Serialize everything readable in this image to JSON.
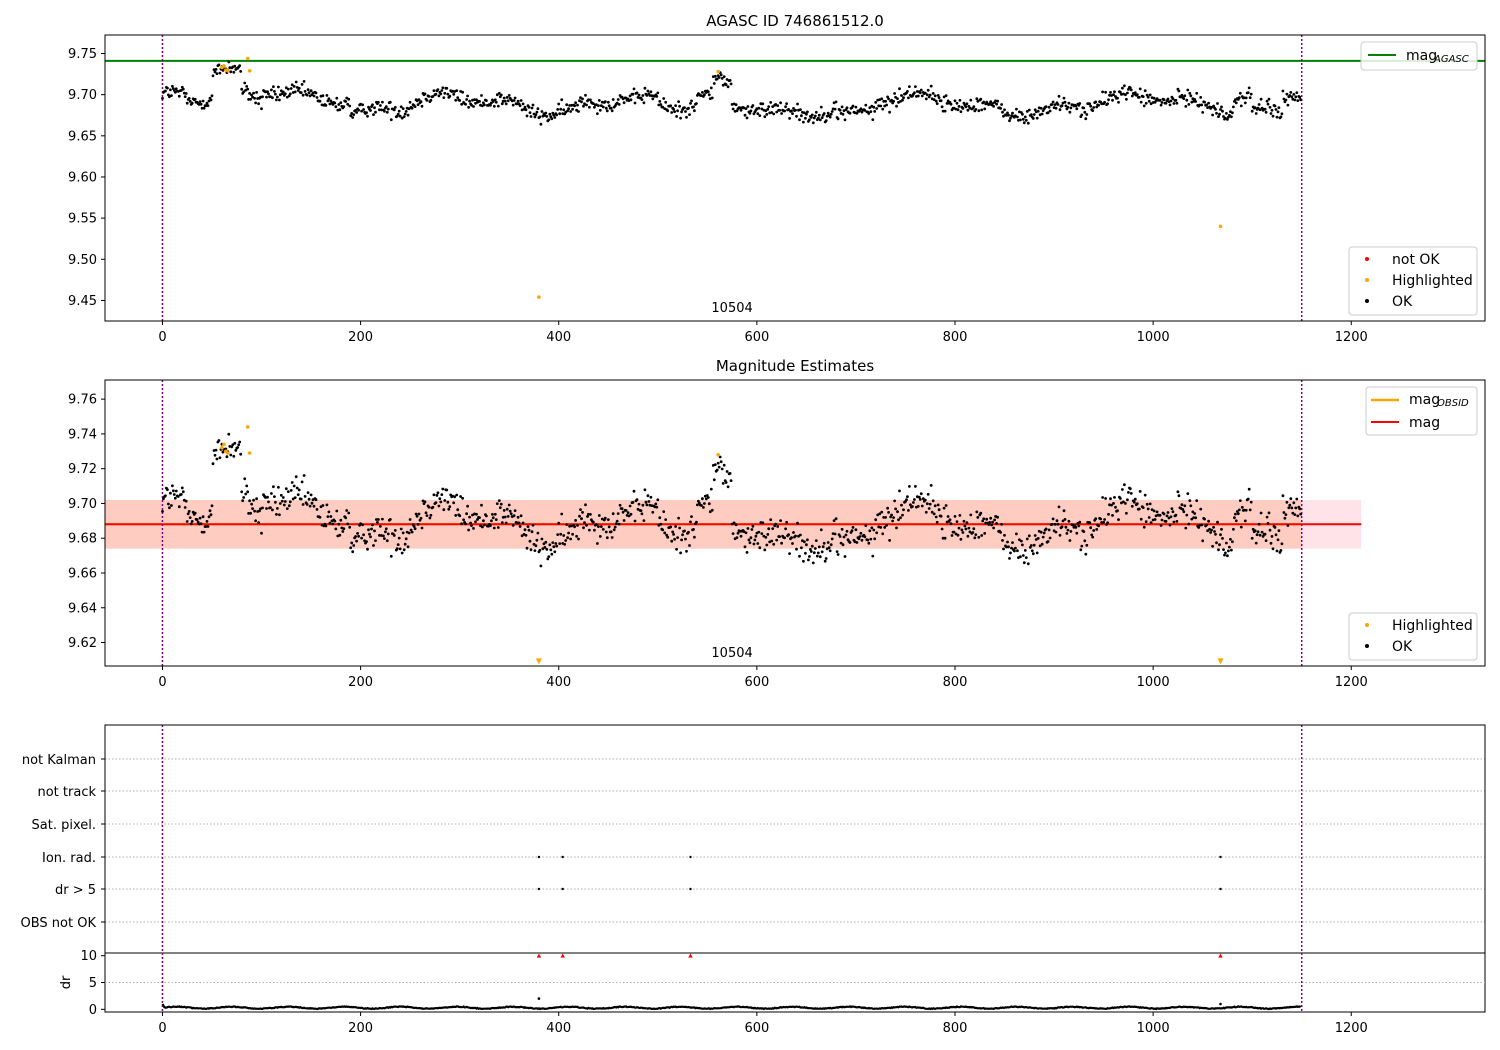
{
  "chart_data": [
    {
      "id": "panel1",
      "type": "scatter",
      "title": "AGASC ID 746861512.0",
      "xlim": [
        -58,
        1335
      ],
      "ylim": [
        9.425,
        9.7725
      ],
      "xticks": [
        0,
        200,
        400,
        600,
        800,
        1000,
        1200
      ],
      "yticks": [
        9.45,
        9.5,
        9.55,
        9.6,
        9.65,
        9.7,
        9.75
      ],
      "ytick_format": 2,
      "grid": false,
      "obsid_lines": [
        0,
        1150
      ],
      "obsid_label": {
        "text": "10504",
        "x": 575
      },
      "mag_agasc": 9.741,
      "legend_top": {
        "position": "top-right",
        "entries": [
          {
            "label": "mag",
            "sub": "AGASC",
            "color": "#008000"
          }
        ]
      },
      "legend_bottom": {
        "position": "lower-right",
        "entries": [
          {
            "label": "not OK",
            "color": "#ff0000"
          },
          {
            "label": "Highlighted",
            "color": "#ffa500"
          },
          {
            "label": "OK",
            "color": "#000000"
          }
        ]
      },
      "series": [
        {
          "name": "OK",
          "color": "#000000",
          "generated": {
            "n": 1150,
            "mean": 9.688,
            "noise": 0.012
          }
        },
        {
          "name": "Highlighted",
          "color": "#ffa500",
          "points": [
            [
              60,
              9.733
            ],
            [
              62,
              9.735
            ],
            [
              64,
              9.73
            ],
            [
              66,
              9.729
            ],
            [
              86,
              9.744
            ],
            [
              88,
              9.729
            ],
            [
              561,
              9.728
            ],
            [
              380,
              9.454
            ],
            [
              1068,
              9.54
            ]
          ]
        }
      ]
    },
    {
      "id": "panel2",
      "type": "scatter",
      "title": "Magnitude Estimates",
      "xlim": [
        -58,
        1335
      ],
      "ylim": [
        9.6065,
        9.771
      ],
      "xticks": [
        0,
        200,
        400,
        600,
        800,
        1000,
        1200
      ],
      "yticks": [
        9.62,
        9.64,
        9.66,
        9.68,
        9.7,
        9.72,
        9.74,
        9.76
      ],
      "ytick_format": 2,
      "grid": false,
      "obsid_lines": [
        0,
        1150
      ],
      "obsid_label": {
        "text": "10504",
        "x": 575
      },
      "mag": 9.688,
      "mag_obsid": 9.688,
      "band": {
        "low": 9.674,
        "high": 9.702,
        "x_end": 1210
      },
      "legend_top": {
        "position": "top-right",
        "entries": [
          {
            "label": "mag",
            "sub": "OBSID",
            "color": "#ffa500"
          },
          {
            "label": "mag",
            "sub": "",
            "color": "#ff0000"
          }
        ]
      },
      "legend_bottom": {
        "position": "lower-right",
        "entries": [
          {
            "label": "Highlighted",
            "color": "#ffa500"
          },
          {
            "label": "OK",
            "color": "#000000"
          }
        ]
      },
      "series": [
        {
          "name": "OK",
          "color": "#000000",
          "generated": {
            "n": 1150,
            "mean": 9.688,
            "noise": 0.012
          }
        },
        {
          "name": "Highlighted",
          "color": "#ffa500",
          "points": [
            [
              60,
              9.732
            ],
            [
              62,
              9.734
            ],
            [
              64,
              9.73
            ],
            [
              66,
              9.729
            ],
            [
              86,
              9.744
            ],
            [
              88,
              9.729
            ],
            [
              561,
              9.728
            ]
          ]
        },
        {
          "name": "Highlighted-offscale",
          "color": "#ffa500",
          "marker": "triangle-down",
          "points": [
            [
              380,
              9.608
            ],
            [
              1068,
              9.608
            ]
          ]
        }
      ]
    },
    {
      "id": "panel3",
      "type": "scatter",
      "xlim": [
        -58,
        1335
      ],
      "rows": [
        "not Kalman",
        "not track",
        "Sat. pixel.",
        "Ion. rad.",
        "dr > 5",
        "OBS not OK"
      ],
      "flags": {
        "Ion. rad.": [
          380,
          404,
          533,
          1068
        ],
        "dr > 5": [
          380,
          404,
          533,
          1068
        ]
      },
      "obsid_lines": [
        0,
        1150
      ]
    },
    {
      "id": "panel4",
      "type": "scatter",
      "ylabel": "dr",
      "xlim": [
        -58,
        1335
      ],
      "ylim": [
        -0.5,
        10.5
      ],
      "xticks": [
        0,
        200,
        400,
        600,
        800,
        1000,
        1200
      ],
      "yticks": [
        0,
        5,
        10
      ],
      "obsid_lines": [
        0,
        1150
      ],
      "dr_mean": 0.3,
      "dr_outliers": [
        [
          380,
          2.0
        ],
        [
          1068,
          1.0
        ]
      ],
      "dr_clipped": [
        380,
        404,
        533,
        1068
      ]
    }
  ]
}
